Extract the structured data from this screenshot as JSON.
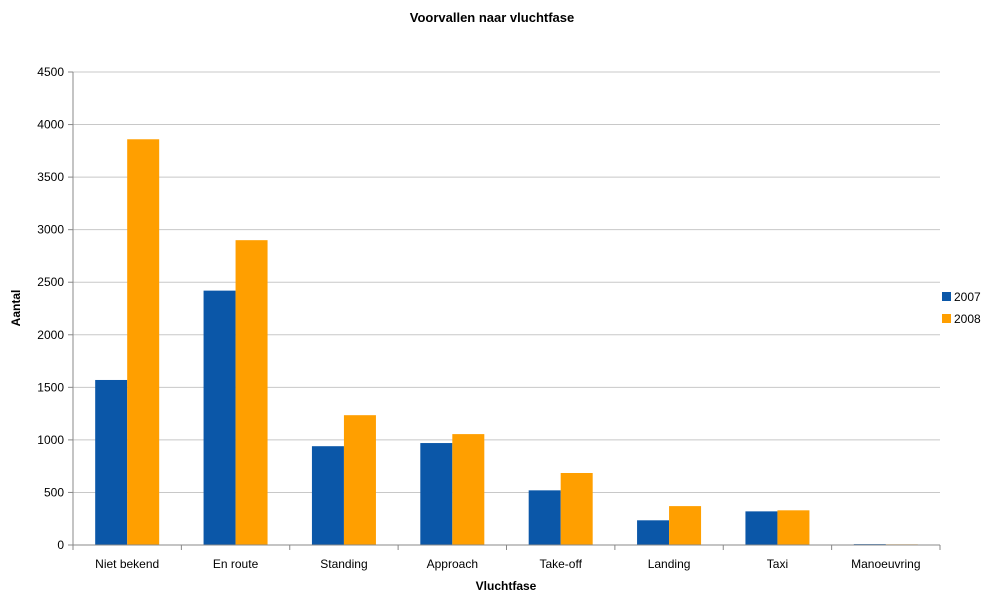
{
  "chart_data": {
    "type": "bar",
    "title": "Voorvallen naar vluchtfase",
    "xlabel": "Vluchtfase",
    "ylabel": "Aantal",
    "categories": [
      "Niet bekend",
      "En route",
      "Standing",
      "Approach",
      "Take-off",
      "Landing",
      "Taxi",
      "Manoeuvring"
    ],
    "series": [
      {
        "name": "2007",
        "color": "#0b57a8",
        "values": [
          1570,
          2420,
          940,
          970,
          520,
          235,
          320,
          8
        ]
      },
      {
        "name": "2008",
        "color": "#ff9f00",
        "values": [
          3860,
          2900,
          1235,
          1055,
          685,
          370,
          330,
          6
        ]
      }
    ],
    "ylim": [
      0,
      4500
    ],
    "yticks": [
      0,
      500,
      1000,
      1500,
      2000,
      2500,
      3000,
      3500,
      4000,
      4500
    ],
    "grid": true,
    "legend_position": "right"
  }
}
